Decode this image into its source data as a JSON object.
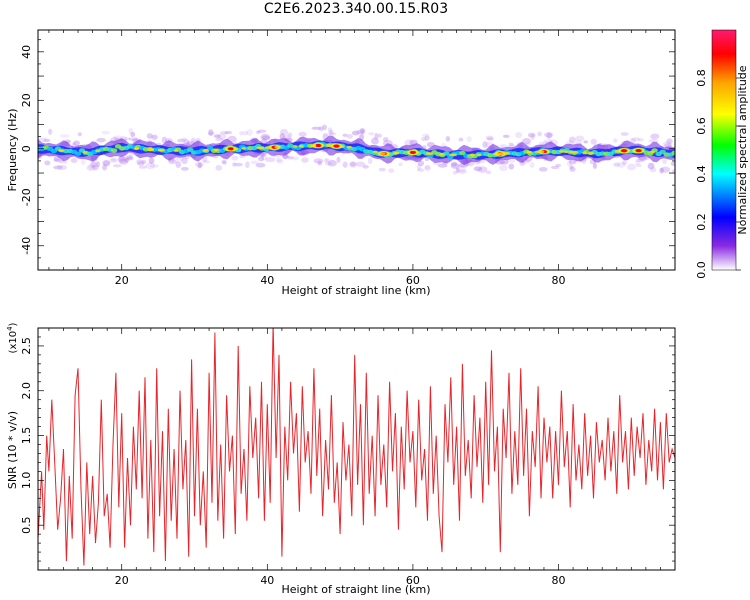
{
  "title": "C2E6.2023.340.00.15.R03",
  "chart_data": [
    {
      "type": "heatmap",
      "xlabel": "Height of straight line (km)",
      "ylabel": "Frequency (Hz)",
      "xlim": [
        8.5,
        96
      ],
      "ylim": [
        -50,
        49
      ],
      "xticks": [
        20,
        40,
        60,
        80
      ],
      "yticks": [
        -40,
        -20,
        0,
        20,
        40
      ],
      "ridge_center": [
        [
          8.5,
          0
        ],
        [
          15,
          -1.5
        ],
        [
          20,
          0.5
        ],
        [
          25,
          -0.5
        ],
        [
          30,
          -1
        ],
        [
          35,
          0
        ],
        [
          40,
          0.5
        ],
        [
          44,
          1
        ],
        [
          48,
          1.5
        ],
        [
          52,
          0.5
        ],
        [
          56,
          -2
        ],
        [
          60,
          -1.5
        ],
        [
          65,
          -2.5
        ],
        [
          70,
          -2.5
        ],
        [
          75,
          -1.5
        ],
        [
          80,
          -1
        ],
        [
          85,
          -2
        ],
        [
          90,
          -0.5
        ],
        [
          96,
          -2
        ]
      ],
      "ridge_halfwidth_hz": 3,
      "peak_heights_km": [
        35,
        41,
        47,
        49.5,
        56,
        60,
        72,
        78,
        89,
        91
      ],
      "colorbar": {
        "label": "Normalized spectral amplitude",
        "range": [
          0,
          1
        ],
        "ticks": [
          0.0,
          0.2,
          0.4,
          0.6,
          0.8
        ],
        "colors": [
          "#ffffff",
          "#8a2be2",
          "#0000ff",
          "#00ffff",
          "#00ff00",
          "#ffff00",
          "#ffa500",
          "#ff0000",
          "#ff1a70"
        ]
      }
    },
    {
      "type": "line",
      "xlabel": "Height of straight line (km)",
      "ylabel": "SNR (10 * v/v)",
      "multiplier": "(x10^4)",
      "xlim": [
        8.5,
        96
      ],
      "ylim": [
        0,
        2.7
      ],
      "xticks": [
        20,
        40,
        60,
        80
      ],
      "yticks": [
        0.5,
        1.0,
        1.5,
        2.0,
        2.5
      ],
      "color": "#e8242a",
      "points": [
        [
          8.5,
          0.35
        ],
        [
          9.0,
          1.1
        ],
        [
          9.3,
          0.45
        ],
        [
          9.7,
          1.5
        ],
        [
          10.0,
          1.1
        ],
        [
          10.4,
          1.9
        ],
        [
          10.8,
          1.2
        ],
        [
          11.2,
          0.45
        ],
        [
          11.6,
          0.8
        ],
        [
          12.0,
          1.35
        ],
        [
          12.4,
          0.1
        ],
        [
          12.8,
          1.05
        ],
        [
          13.2,
          0.35
        ],
        [
          13.6,
          1.95
        ],
        [
          14.0,
          2.25
        ],
        [
          14.4,
          0.9
        ],
        [
          14.8,
          0.05
        ],
        [
          15.2,
          1.2
        ],
        [
          15.6,
          0.4
        ],
        [
          16.0,
          1.05
        ],
        [
          16.4,
          0.3
        ],
        [
          16.8,
          0.75
        ],
        [
          17.2,
          1.9
        ],
        [
          17.6,
          0.6
        ],
        [
          18.0,
          0.85
        ],
        [
          18.4,
          0.25
        ],
        [
          18.8,
          1.4
        ],
        [
          19.2,
          2.2
        ],
        [
          19.6,
          0.7
        ],
        [
          20.0,
          1.75
        ],
        [
          20.4,
          0.25
        ],
        [
          20.8,
          1.25
        ],
        [
          21.2,
          0.5
        ],
        [
          21.6,
          1.6
        ],
        [
          22.0,
          0.9
        ],
        [
          22.4,
          2.0
        ],
        [
          22.8,
          0.8
        ],
        [
          23.2,
          2.15
        ],
        [
          23.6,
          0.35
        ],
        [
          24.0,
          1.45
        ],
        [
          24.4,
          0.2
        ],
        [
          24.8,
          2.25
        ],
        [
          25.2,
          0.6
        ],
        [
          25.6,
          1.55
        ],
        [
          26.0,
          0.1
        ],
        [
          26.4,
          1.8
        ],
        [
          26.8,
          0.55
        ],
        [
          27.2,
          1.35
        ],
        [
          27.6,
          0.35
        ],
        [
          28.0,
          2.0
        ],
        [
          28.4,
          0.9
        ],
        [
          28.8,
          1.45
        ],
        [
          29.2,
          0.15
        ],
        [
          29.6,
          2.35
        ],
        [
          30.0,
          0.6
        ],
        [
          30.4,
          1.8
        ],
        [
          30.8,
          0.5
        ],
        [
          31.2,
          1.1
        ],
        [
          31.6,
          0.25
        ],
        [
          32.0,
          2.2
        ],
        [
          32.4,
          0.75
        ],
        [
          32.8,
          2.65
        ],
        [
          33.2,
          0.55
        ],
        [
          33.6,
          1.4
        ],
        [
          34.0,
          0.35
        ],
        [
          34.4,
          1.95
        ],
        [
          34.8,
          1.1
        ],
        [
          35.2,
          1.5
        ],
        [
          35.6,
          0.4
        ],
        [
          36.0,
          2.5
        ],
        [
          36.4,
          0.85
        ],
        [
          36.8,
          1.35
        ],
        [
          37.2,
          0.55
        ],
        [
          37.6,
          2.05
        ],
        [
          38.0,
          1.25
        ],
        [
          38.4,
          1.7
        ],
        [
          38.8,
          0.8
        ],
        [
          39.2,
          2.1
        ],
        [
          39.6,
          0.55
        ],
        [
          40.0,
          1.85
        ],
        [
          40.4,
          0.75
        ],
        [
          40.8,
          2.75
        ],
        [
          41.2,
          1.25
        ],
        [
          41.6,
          2.4
        ],
        [
          42.0,
          0.15
        ],
        [
          42.4,
          1.6
        ],
        [
          42.8,
          1.0
        ],
        [
          43.2,
          2.1
        ],
        [
          43.6,
          1.3
        ],
        [
          44.0,
          1.75
        ],
        [
          44.4,
          0.65
        ],
        [
          44.8,
          2.05
        ],
        [
          45.2,
          1.2
        ],
        [
          45.6,
          1.55
        ],
        [
          46.0,
          0.85
        ],
        [
          46.4,
          2.25
        ],
        [
          46.8,
          1.05
        ],
        [
          47.2,
          1.8
        ],
        [
          47.6,
          0.6
        ],
        [
          48.0,
          1.45
        ],
        [
          48.4,
          0.9
        ],
        [
          48.8,
          1.95
        ],
        [
          49.2,
          0.75
        ],
        [
          49.6,
          1.2
        ],
        [
          50.0,
          0.4
        ],
        [
          50.4,
          1.65
        ],
        [
          50.8,
          1.0
        ],
        [
          51.2,
          1.4
        ],
        [
          51.6,
          0.6
        ],
        [
          52.0,
          2.4
        ],
        [
          52.4,
          0.95
        ],
        [
          52.8,
          1.85
        ],
        [
          53.2,
          0.5
        ],
        [
          53.6,
          2.2
        ],
        [
          54.0,
          0.85
        ],
        [
          54.4,
          1.5
        ],
        [
          54.8,
          0.6
        ],
        [
          55.2,
          1.95
        ],
        [
          55.6,
          0.95
        ],
        [
          56.0,
          1.4
        ],
        [
          56.4,
          0.7
        ],
        [
          56.8,
          2.1
        ],
        [
          57.2,
          1.1
        ],
        [
          57.6,
          1.75
        ],
        [
          58.0,
          0.45
        ],
        [
          58.4,
          1.6
        ],
        [
          58.8,
          0.9
        ],
        [
          59.2,
          2.0
        ],
        [
          59.6,
          1.2
        ],
        [
          60.0,
          1.55
        ],
        [
          60.4,
          0.7
        ],
        [
          60.8,
          1.9
        ],
        [
          61.2,
          1.0
        ],
        [
          61.6,
          1.35
        ],
        [
          62.0,
          0.55
        ],
        [
          62.4,
          2.05
        ],
        [
          62.8,
          0.85
        ],
        [
          63.2,
          1.5
        ],
        [
          63.6,
          0.6
        ],
        [
          64.0,
          0.2
        ],
        [
          64.4,
          1.85
        ],
        [
          64.8,
          1.2
        ],
        [
          65.2,
          2.15
        ],
        [
          65.6,
          0.95
        ],
        [
          66.0,
          1.6
        ],
        [
          66.4,
          0.55
        ],
        [
          66.8,
          2.3
        ],
        [
          67.2,
          1.05
        ],
        [
          67.6,
          1.45
        ],
        [
          68.0,
          0.8
        ],
        [
          68.4,
          1.95
        ],
        [
          68.8,
          1.15
        ],
        [
          69.2,
          1.7
        ],
        [
          69.6,
          0.75
        ],
        [
          70.0,
          2.1
        ],
        [
          70.4,
          0.95
        ],
        [
          70.8,
          2.45
        ],
        [
          71.2,
          1.1
        ],
        [
          71.6,
          1.6
        ],
        [
          72.0,
          0.2
        ],
        [
          72.4,
          1.8
        ],
        [
          72.8,
          1.25
        ],
        [
          73.2,
          2.2
        ],
        [
          73.6,
          0.85
        ],
        [
          74.0,
          1.55
        ],
        [
          74.4,
          0.95
        ],
        [
          74.8,
          2.25
        ],
        [
          75.2,
          1.05
        ],
        [
          75.6,
          1.8
        ],
        [
          76.0,
          0.6
        ],
        [
          76.4,
          1.55
        ],
        [
          76.8,
          1.15
        ],
        [
          77.2,
          2.05
        ],
        [
          77.6,
          0.8
        ],
        [
          78.0,
          1.7
        ],
        [
          78.4,
          1.2
        ],
        [
          78.8,
          1.6
        ],
        [
          79.2,
          0.8
        ],
        [
          79.6,
          1.55
        ],
        [
          80.0,
          0.95
        ],
        [
          80.4,
          2.0
        ],
        [
          80.8,
          1.15
        ],
        [
          81.2,
          1.55
        ],
        [
          81.6,
          0.7
        ],
        [
          82.0,
          1.85
        ],
        [
          82.4,
          1.0
        ],
        [
          82.8,
          1.4
        ],
        [
          83.2,
          0.9
        ],
        [
          83.6,
          1.75
        ],
        [
          84.0,
          1.05
        ],
        [
          84.4,
          1.5
        ],
        [
          84.8,
          0.8
        ],
        [
          85.2,
          1.65
        ],
        [
          85.6,
          1.2
        ],
        [
          86.0,
          1.45
        ],
        [
          86.4,
          1.0
        ],
        [
          86.8,
          1.7
        ],
        [
          87.2,
          1.1
        ],
        [
          87.6,
          1.55
        ],
        [
          88.0,
          0.85
        ],
        [
          88.4,
          1.95
        ],
        [
          88.8,
          1.2
        ],
        [
          89.2,
          1.55
        ],
        [
          89.6,
          0.9
        ],
        [
          90.0,
          1.7
        ],
        [
          90.4,
          1.05
        ],
        [
          90.8,
          1.6
        ],
        [
          91.2,
          1.25
        ],
        [
          91.6,
          1.75
        ],
        [
          92.0,
          0.95
        ],
        [
          92.4,
          1.45
        ],
        [
          92.8,
          1.1
        ],
        [
          93.2,
          1.8
        ],
        [
          93.6,
          1.0
        ],
        [
          94.0,
          1.65
        ],
        [
          94.4,
          0.9
        ],
        [
          94.8,
          1.75
        ],
        [
          95.2,
          1.2
        ],
        [
          95.6,
          1.35
        ],
        [
          96.0,
          1.25
        ]
      ]
    }
  ]
}
